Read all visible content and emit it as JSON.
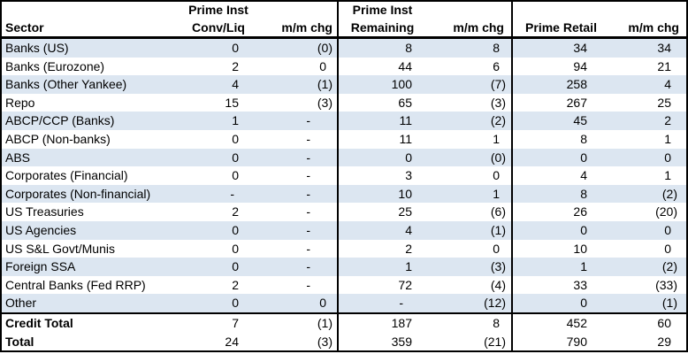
{
  "chart_data": {
    "type": "table",
    "header": {
      "sector_label": "Sector",
      "groups": [
        {
          "top": "Prime Inst",
          "main": "Conv/Liq",
          "chg": "m/m chg"
        },
        {
          "top": "Prime Inst",
          "main": "Remaining",
          "chg": "m/m chg"
        },
        {
          "top": "",
          "main": "Prime Retail",
          "chg": "m/m chg"
        }
      ],
      "columns": [
        "Sector",
        "Prime Inst Conv/Liq",
        "m/m chg",
        "Prime Inst Remaining",
        "m/m chg",
        "Prime Retail",
        "m/m chg"
      ]
    },
    "rows": [
      {
        "sector": "Banks (US)",
        "values": [
          "0",
          "(0)",
          "8",
          "8",
          "34",
          "34"
        ]
      },
      {
        "sector": "Banks (Eurozone)",
        "values": [
          "2",
          "0",
          "44",
          "6",
          "94",
          "21"
        ]
      },
      {
        "sector": "Banks (Other Yankee)",
        "values": [
          "4",
          "(1)",
          "100",
          "(7)",
          "258",
          "4"
        ]
      },
      {
        "sector": "Repo",
        "values": [
          "15",
          "(3)",
          "65",
          "(3)",
          "267",
          "25"
        ]
      },
      {
        "sector": "ABCP/CCP (Banks)",
        "values": [
          "1",
          "-",
          "11",
          "(2)",
          "45",
          "2"
        ]
      },
      {
        "sector": "ABCP (Non-banks)",
        "values": [
          "0",
          "-",
          "11",
          "1",
          "8",
          "1"
        ]
      },
      {
        "sector": "ABS",
        "values": [
          "0",
          "-",
          "0",
          "(0)",
          "0",
          "0"
        ]
      },
      {
        "sector": "Corporates (Financial)",
        "values": [
          "0",
          "-",
          "3",
          "0",
          "4",
          "1"
        ]
      },
      {
        "sector": "Corporates (Non-financial)",
        "values": [
          "-",
          "-",
          "10",
          "1",
          "8",
          "(2)"
        ]
      },
      {
        "sector": "US Treasuries",
        "values": [
          "2",
          "-",
          "25",
          "(6)",
          "26",
          "(20)"
        ]
      },
      {
        "sector": "US Agencies",
        "values": [
          "0",
          "-",
          "4",
          "(1)",
          "0",
          "0"
        ]
      },
      {
        "sector": "US S&L Govt/Munis",
        "values": [
          "0",
          "-",
          "2",
          "0",
          "10",
          "0"
        ]
      },
      {
        "sector": "Foreign SSA",
        "values": [
          "0",
          "-",
          "1",
          "(3)",
          "1",
          "(2)"
        ]
      },
      {
        "sector": "Central Banks (Fed RRP)",
        "values": [
          "2",
          "-",
          "72",
          "(4)",
          "33",
          "(33)"
        ]
      },
      {
        "sector": "Other",
        "values": [
          "0",
          "0",
          "-",
          "(12)",
          "0",
          "(1)"
        ]
      }
    ],
    "totals": [
      {
        "sector": "Credit Total",
        "values": [
          "7",
          "(1)",
          "187",
          "8",
          "452",
          "60"
        ]
      },
      {
        "sector": "Total",
        "values": [
          "24",
          "(3)",
          "359",
          "(21)",
          "790",
          "29"
        ]
      }
    ],
    "layout_hints": {
      "stripe_rows": "odd data rows shaded",
      "negative_format": "parentheses",
      "zero_format": "dash"
    }
  },
  "colors": {
    "stripe": "#dce6f1",
    "border": "#000000",
    "background": "#ffffff",
    "text": "#000000"
  }
}
